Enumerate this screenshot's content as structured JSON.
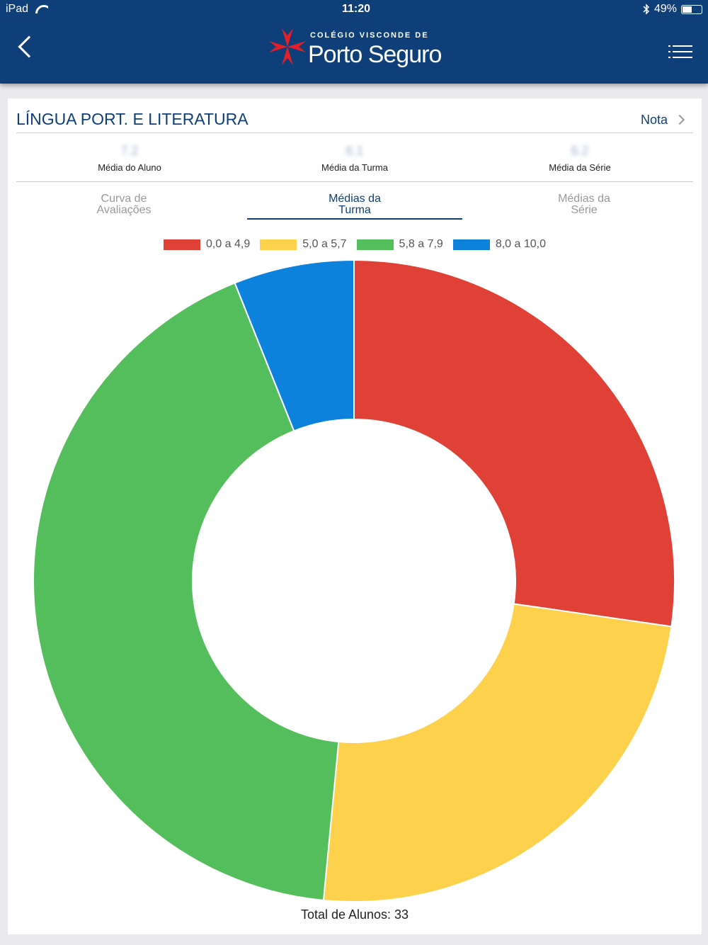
{
  "status": {
    "device": "iPad",
    "time": "11:20",
    "battery": "49%"
  },
  "header": {
    "logo_small": "COLÉGIO VISCONDE DE",
    "logo_big": "Porto Seguro"
  },
  "card": {
    "title": "LÍNGUA PORT. E LITERATURA",
    "nota": "Nota"
  },
  "stats": [
    {
      "value": "7.2",
      "label": "Média do Aluno"
    },
    {
      "value": "6.1",
      "label": "Média da Turma"
    },
    {
      "value": "6.2",
      "label": "Média da Série"
    }
  ],
  "tabs": [
    {
      "label": "Curva de\nAvaliações"
    },
    {
      "label": "Médias da\nTurma"
    },
    {
      "label": "Médias da\nSérie"
    }
  ],
  "chart_data": {
    "type": "pie",
    "categories": [
      "0,0 a 4,9",
      "5,0 a 5,7",
      "5,8 a 7,9",
      "8,0 a 10,0"
    ],
    "values": [
      9,
      8,
      14,
      2
    ],
    "colors": [
      "#e04137",
      "#fed14d",
      "#55be5c",
      "#0d82dc"
    ],
    "total_label": "Total de Alunos: 33"
  }
}
